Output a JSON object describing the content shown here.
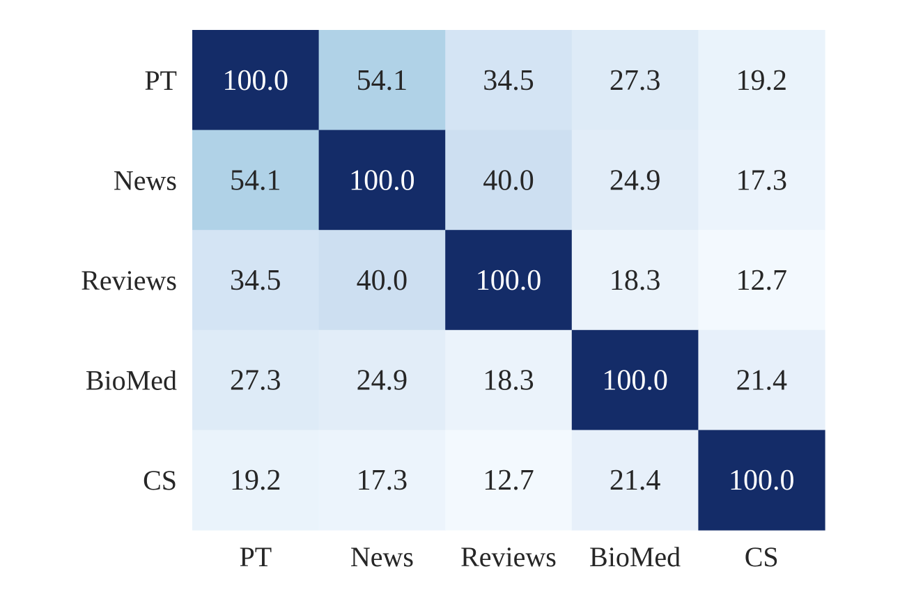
{
  "chart_data": {
    "type": "heatmap",
    "title": "",
    "xlabel": "",
    "ylabel": "",
    "x_categories": [
      "PT",
      "News",
      "Reviews",
      "BioMed",
      "CS"
    ],
    "y_categories": [
      "PT",
      "News",
      "Reviews",
      "BioMed",
      "CS"
    ],
    "values": [
      [
        100.0,
        54.1,
        34.5,
        27.3,
        19.2
      ],
      [
        54.1,
        100.0,
        40.0,
        24.9,
        17.3
      ],
      [
        34.5,
        40.0,
        100.0,
        18.3,
        12.7
      ],
      [
        27.3,
        24.9,
        18.3,
        100.0,
        21.4
      ],
      [
        19.2,
        17.3,
        12.7,
        21.4,
        100.0
      ]
    ],
    "color_range": [
      0,
      100
    ],
    "colormap": "Blues",
    "color_low": "#f7fbff",
    "color_high": "#142c68",
    "text_dark": "#262626",
    "text_light": "#ffffff",
    "legend": "none",
    "grid": false
  }
}
